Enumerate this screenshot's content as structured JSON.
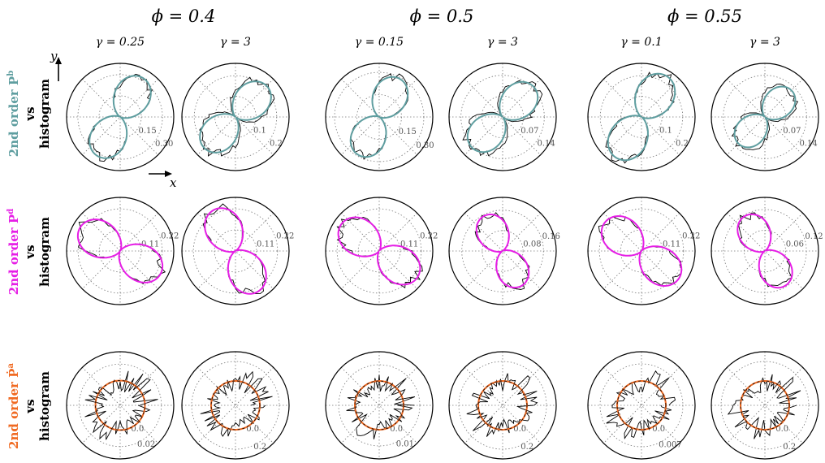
{
  "figure": {
    "phi_titles": [
      "ϕ = 0.4",
      "ϕ = 0.5",
      "ϕ = 0.55"
    ],
    "gamma_titles": [
      "γ = 0.25",
      "γ = 3",
      "γ = 0.15",
      "γ = 3",
      "γ = 0.1",
      "γ = 3"
    ],
    "axis_labels": {
      "x": "x",
      "y": "y"
    }
  },
  "rows": [
    {
      "label_colored": "2nd order P",
      "label_super": "b",
      "label_vs": "vs",
      "label_hist": "histogram",
      "color": "#5f9ea0"
    },
    {
      "label_colored": "2nd order P",
      "label_super": "d",
      "label_vs": "vs",
      "label_hist": "histogram",
      "color": "#e61ee6"
    },
    {
      "label_colored": "2nd order Ṗ",
      "label_super": "a",
      "label_vs": "vs",
      "label_hist": "histogram",
      "color": "#f06a22"
    }
  ],
  "chart_data": [
    {
      "type": "polar",
      "row": 0,
      "col": 0,
      "angle_deg": 60,
      "peak": 0.33,
      "rmax": 0.38,
      "ticks": [
        "0.15",
        "0.30"
      ],
      "tick_values": [
        0.15,
        0.3
      ],
      "series": [
        {
          "name": "2nd order",
          "color": "#5f9ea0"
        },
        {
          "name": "histogram",
          "color": "#000000"
        }
      ]
    },
    {
      "type": "polar",
      "row": 0,
      "col": 1,
      "angle_deg": 45,
      "peak": 0.22,
      "rmax": 0.26,
      "ticks": [
        "0.1",
        "0.2"
      ],
      "tick_values": [
        0.1,
        0.2
      ],
      "series": [
        {
          "name": "2nd order",
          "color": "#5f9ea0"
        },
        {
          "name": "histogram",
          "color": "#000000"
        }
      ]
    },
    {
      "type": "polar",
      "row": 0,
      "col": 2,
      "angle_deg": 62,
      "peak": 0.3,
      "rmax": 0.36,
      "ticks": [
        "0.15",
        "0.30"
      ],
      "tick_values": [
        0.15,
        0.3
      ],
      "series": [
        {
          "name": "2nd order",
          "color": "#5f9ea0"
        },
        {
          "name": "histogram",
          "color": "#000000"
        }
      ]
    },
    {
      "type": "polar",
      "row": 0,
      "col": 3,
      "angle_deg": 45,
      "peak": 0.15,
      "rmax": 0.18,
      "ticks": [
        "0.07",
        "0.14"
      ],
      "tick_values": [
        0.07,
        0.14
      ],
      "series": [
        {
          "name": "2nd order",
          "color": "#5f9ea0"
        },
        {
          "name": "histogram",
          "color": "#000000"
        }
      ]
    },
    {
      "type": "polar",
      "row": 0,
      "col": 4,
      "angle_deg": 58,
      "peak": 0.24,
      "rmax": 0.26,
      "ticks": [
        "0.1",
        "0.2"
      ],
      "tick_values": [
        0.1,
        0.2
      ],
      "series": [
        {
          "name": "2nd order",
          "color": "#5f9ea0"
        },
        {
          "name": "histogram",
          "color": "#000000"
        }
      ]
    },
    {
      "type": "polar",
      "row": 0,
      "col": 5,
      "angle_deg": 45,
      "peak": 0.13,
      "rmax": 0.18,
      "ticks": [
        "0.07",
        "0.14"
      ],
      "tick_values": [
        0.07,
        0.14
      ],
      "series": [
        {
          "name": "2nd order",
          "color": "#5f9ea0"
        },
        {
          "name": "histogram",
          "color": "#000000"
        }
      ]
    },
    {
      "type": "polar",
      "row": 1,
      "col": 0,
      "angle_deg": -30,
      "peak": 0.25,
      "rmax": 0.28,
      "ticks": [
        "0.11",
        "0.22"
      ],
      "tick_values": [
        0.11,
        0.22
      ],
      "series": [
        {
          "name": "2nd order",
          "color": "#e61ee6"
        },
        {
          "name": "histogram",
          "color": "#000000"
        }
      ]
    },
    {
      "type": "polar",
      "row": 1,
      "col": 1,
      "angle_deg": -62,
      "peak": 0.25,
      "rmax": 0.28,
      "ticks": [
        "0.11",
        "0.22"
      ],
      "tick_values": [
        0.11,
        0.22
      ],
      "series": [
        {
          "name": "2nd order",
          "color": "#e61ee6"
        },
        {
          "name": "histogram",
          "color": "#000000"
        }
      ]
    },
    {
      "type": "polar",
      "row": 1,
      "col": 2,
      "angle_deg": -35,
      "peak": 0.25,
      "rmax": 0.28,
      "ticks": [
        "0.11",
        "0.22"
      ],
      "tick_values": [
        0.11,
        0.22
      ],
      "series": [
        {
          "name": "2nd order",
          "color": "#e61ee6"
        },
        {
          "name": "histogram",
          "color": "#000000"
        }
      ]
    },
    {
      "type": "polar",
      "row": 1,
      "col": 3,
      "angle_deg": -62,
      "peak": 0.16,
      "rmax": 0.21,
      "ticks": [
        "0.08",
        "0.16"
      ],
      "tick_values": [
        0.08,
        0.16
      ],
      "series": [
        {
          "name": "2nd order",
          "color": "#e61ee6"
        },
        {
          "name": "histogram",
          "color": "#000000"
        }
      ]
    },
    {
      "type": "polar",
      "row": 1,
      "col": 4,
      "angle_deg": -38,
      "peak": 0.25,
      "rmax": 0.28,
      "ticks": [
        "0.11",
        "0.22"
      ],
      "tick_values": [
        0.11,
        0.22
      ],
      "series": [
        {
          "name": "2nd order",
          "color": "#e61ee6"
        },
        {
          "name": "histogram",
          "color": "#000000"
        }
      ]
    },
    {
      "type": "polar",
      "row": 1,
      "col": 5,
      "angle_deg": -60,
      "peak": 0.12,
      "rmax": 0.155,
      "ticks": [
        "0.06",
        "0.12"
      ],
      "tick_values": [
        0.06,
        0.12
      ],
      "series": [
        {
          "name": "2nd order",
          "color": "#e61ee6"
        },
        {
          "name": "histogram",
          "color": "#000000"
        }
      ]
    },
    {
      "type": "polar",
      "row": 2,
      "col": 0,
      "offset": 0.0,
      "peak": 0.0,
      "rmax": 0.035,
      "rmin": -0.03,
      "ticks": [
        "0.02",
        "0.0"
      ],
      "tick_values": [
        0.02,
        0.0
      ],
      "series": [
        {
          "name": "2nd order",
          "color": "#f06a22"
        },
        {
          "name": "histogram",
          "color": "#000000"
        }
      ]
    },
    {
      "type": "polar",
      "row": 2,
      "col": 1,
      "offset": 0.0,
      "peak": 0.0,
      "rmax": 0.3,
      "rmin": -0.25,
      "ticks": [
        "0.2",
        "0.0"
      ],
      "tick_values": [
        0.2,
        0.0
      ],
      "series": [
        {
          "name": "2nd order",
          "color": "#f06a22"
        },
        {
          "name": "histogram",
          "color": "#000000"
        }
      ]
    },
    {
      "type": "polar",
      "row": 2,
      "col": 2,
      "offset": 0.0,
      "peak": 0.0,
      "rmax": 0.018,
      "rmin": -0.015,
      "ticks": [
        "0.01",
        "0.0"
      ],
      "tick_values": [
        0.01,
        0.0
      ],
      "series": [
        {
          "name": "2nd order",
          "color": "#f06a22"
        },
        {
          "name": "histogram",
          "color": "#000000"
        }
      ]
    },
    {
      "type": "polar",
      "row": 2,
      "col": 3,
      "offset": 0.0,
      "peak": 0.0,
      "rmax": 0.3,
      "rmin": -0.25,
      "ticks": [
        "0.2",
        "0.0"
      ],
      "tick_values": [
        0.2,
        0.0
      ],
      "series": [
        {
          "name": "2nd order",
          "color": "#f06a22"
        },
        {
          "name": "histogram",
          "color": "#000000"
        }
      ]
    },
    {
      "type": "polar",
      "row": 2,
      "col": 4,
      "offset": 0.0,
      "peak": 0.0,
      "rmax": 0.012,
      "rmin": -0.01,
      "ticks": [
        "0.007",
        "0.0"
      ],
      "tick_values": [
        0.007,
        0.0
      ],
      "series": [
        {
          "name": "2nd order",
          "color": "#f06a22"
        },
        {
          "name": "histogram",
          "color": "#000000"
        }
      ]
    },
    {
      "type": "polar",
      "row": 2,
      "col": 5,
      "offset": 0.0,
      "peak": 0.0,
      "rmax": 0.3,
      "rmin": -0.25,
      "ticks": [
        "0.2",
        "0.0"
      ],
      "tick_values": [
        0.2,
        0.0
      ],
      "series": [
        {
          "name": "2nd order",
          "color": "#f06a22"
        },
        {
          "name": "histogram",
          "color": "#000000"
        }
      ]
    }
  ]
}
